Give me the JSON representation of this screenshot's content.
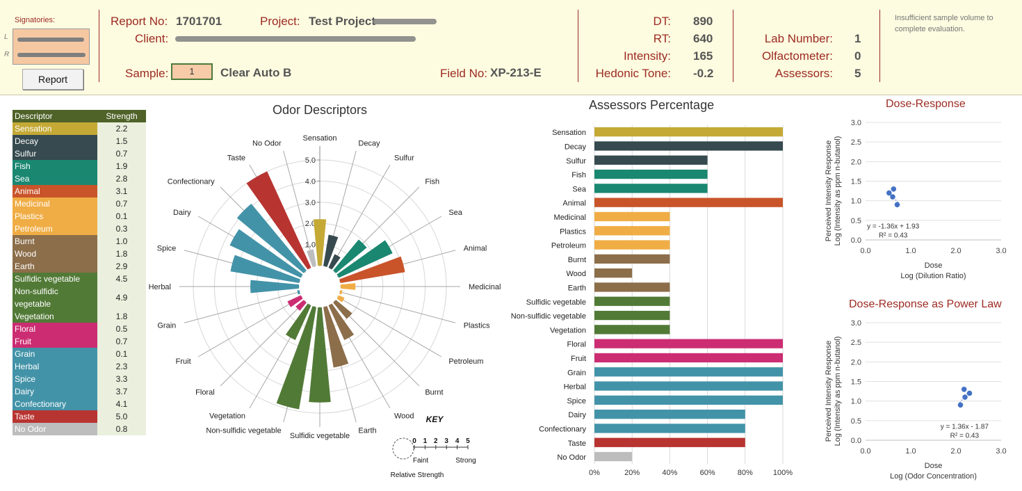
{
  "header": {
    "signatories_label": "Signatories:",
    "sig_l": "L",
    "sig_r": "R",
    "report_button": "Report",
    "report_no_label": "Report No:",
    "report_no": "1701701",
    "project_label": "Project:",
    "project": "Test Project",
    "client_label": "Client:",
    "sample_label": "Sample:",
    "sample_value": "1",
    "sample_name": "Clear Auto B",
    "field_no_label": "Field No:",
    "field_no": "XP-213-E",
    "dt_label": "DT:",
    "dt": "890",
    "rt_label": "RT:",
    "rt": "640",
    "intensity_label": "Intensity:",
    "intensity": "165",
    "hedonic_label": "Hedonic Tone:",
    "hedonic": "-0.2",
    "lab_number_label": "Lab Number:",
    "lab_number": "1",
    "olfactometer_label": "Olfactometer:",
    "olfactometer": "0",
    "assessors_label": "Assessors:",
    "assessors": "5",
    "note": "Insufficient sample volume to complete evaluation."
  },
  "descriptor_table": {
    "col_descriptor": "Descriptor",
    "col_strength": "Strength"
  },
  "descriptors": [
    {
      "name": "Sensation",
      "strength": "2.2",
      "color": "#c4a935"
    },
    {
      "name": "Decay",
      "strength": "1.5",
      "color": "#364a4f"
    },
    {
      "name": "Sulfur",
      "strength": "0.7",
      "color": "#364a4f"
    },
    {
      "name": "Fish",
      "strength": "1.9",
      "color": "#1a8771"
    },
    {
      "name": "Sea",
      "strength": "2.8",
      "color": "#1a8771"
    },
    {
      "name": "Animal",
      "strength": "3.1",
      "color": "#c9542a"
    },
    {
      "name": "Medicinal",
      "strength": "0.7",
      "color": "#f0ad45"
    },
    {
      "name": "Plastics",
      "strength": "0.1",
      "color": "#f0ad45"
    },
    {
      "name": "Petroleum",
      "strength": "0.3",
      "color": "#f0ad45"
    },
    {
      "name": "Burnt",
      "strength": "1.0",
      "color": "#8c6e4a"
    },
    {
      "name": "Wood",
      "strength": "1.8",
      "color": "#8c6e4a"
    },
    {
      "name": "Earth",
      "strength": "2.9",
      "color": "#8c6e4a"
    },
    {
      "name": "Sulfidic vegetable",
      "strength": "4.5",
      "color": "#527a37"
    },
    {
      "name": "Non-sulfidic vegetable",
      "strength": "4.9",
      "color": "#527a37"
    },
    {
      "name": "Vegetation",
      "strength": "1.8",
      "color": "#527a37"
    },
    {
      "name": "Floral",
      "strength": "0.5",
      "color": "#cc2d72"
    },
    {
      "name": "Fruit",
      "strength": "0.7",
      "color": "#cc2d72"
    },
    {
      "name": "Grain",
      "strength": "0.1",
      "color": "#4393a8"
    },
    {
      "name": "Herbal",
      "strength": "2.3",
      "color": "#4393a8"
    },
    {
      "name": "Spice",
      "strength": "3.3",
      "color": "#4393a8"
    },
    {
      "name": "Dairy",
      "strength": "3.7",
      "color": "#4393a8"
    },
    {
      "name": "Confectionary",
      "strength": "4.1",
      "color": "#4393a8"
    },
    {
      "name": "Taste",
      "strength": "5.0",
      "color": "#b83431"
    },
    {
      "name": "No Odor",
      "strength": "0.8",
      "color": "#bdbdbd"
    }
  ],
  "chart_data": [
    {
      "type": "polar-bar",
      "title": "Odor Descriptors",
      "rlim": [
        0,
        5
      ],
      "r_ticks": [
        "1.0",
        "2.0",
        "3.0",
        "4.0",
        "5.0"
      ],
      "categories": [
        "Sensation",
        "Decay",
        "Sulfur",
        "Fish",
        "Sea",
        "Animal",
        "Medicinal",
        "Plastics",
        "Petroleum",
        "Burnt",
        "Wood",
        "Earth",
        "Sulfidic vegetable",
        "Non-sulfidic vegetable",
        "Vegetation",
        "Floral",
        "Fruit",
        "Grain",
        "Herbal",
        "Spice",
        "Dairy",
        "Confectionary",
        "Taste",
        "No Odor"
      ],
      "values": [
        2.2,
        1.5,
        0.7,
        1.9,
        2.8,
        3.1,
        0.7,
        0.1,
        0.3,
        1.0,
        1.8,
        2.9,
        4.5,
        4.9,
        1.8,
        0.5,
        0.7,
        0.1,
        2.3,
        3.3,
        3.7,
        4.1,
        5.0,
        0.8
      ],
      "key": {
        "title": "KEY",
        "scale": [
          "0",
          "1",
          "2",
          "3",
          "4",
          "5"
        ],
        "faint": "Faint",
        "strong": "Strong",
        "caption": "Relative Strength"
      }
    },
    {
      "type": "bar",
      "orientation": "horizontal",
      "title": "Assessors Percentage",
      "categories": [
        "Sensation",
        "Decay",
        "Sulfur",
        "Fish",
        "Sea",
        "Animal",
        "Medicinal",
        "Plastics",
        "Petroleum",
        "Burnt",
        "Wood",
        "Earth",
        "Sulfidic vegetable",
        "Non-sulfidic vegetable",
        "Vegetation",
        "Floral",
        "Fruit",
        "Grain",
        "Herbal",
        "Spice",
        "Dairy",
        "Confectionary",
        "Taste",
        "No Odor"
      ],
      "values": [
        100,
        100,
        60,
        60,
        60,
        100,
        40,
        40,
        40,
        40,
        20,
        40,
        40,
        40,
        40,
        100,
        100,
        100,
        100,
        100,
        80,
        80,
        80,
        20
      ],
      "xlim": [
        0,
        100
      ],
      "x_ticks": [
        "0%",
        "20%",
        "40%",
        "60%",
        "80%",
        "100%"
      ]
    },
    {
      "type": "scatter",
      "title": "Dose-Response",
      "xlabel": "Dose",
      "xlabel2": "Log (Dilution Ratio)",
      "ylabel": "Perceived Intensity Response",
      "ylabel2": "Log (Intensity as ppm n-butanol)",
      "xlim": [
        0,
        3
      ],
      "ylim": [
        0,
        3
      ],
      "x_ticks": [
        "0.0",
        "1.0",
        "2.0",
        "3.0"
      ],
      "y_ticks": [
        "0.0",
        "0.5",
        "1.0",
        "1.5",
        "2.0",
        "2.5",
        "3.0"
      ],
      "points": [
        {
          "x": 0.52,
          "y": 1.2
        },
        {
          "x": 0.62,
          "y": 1.3
        },
        {
          "x": 0.6,
          "y": 1.1
        },
        {
          "x": 0.7,
          "y": 0.9
        }
      ],
      "trendline": {
        "slope": -1.36,
        "intercept": 1.93,
        "x_range": [
          0.5,
          0.72
        ]
      },
      "equation": "y = -1.36x + 1.93",
      "r2": "R² = 0.43"
    },
    {
      "type": "scatter",
      "title": "Dose-Response as Power Law",
      "xlabel": "Dose",
      "xlabel2": "Log (Odor Concentration)",
      "ylabel": "Perceived Intensity Response",
      "ylabel2": "Log (Intensity as ppm n-butanol)",
      "xlim": [
        0,
        3
      ],
      "ylim": [
        0,
        3
      ],
      "x_ticks": [
        "0.0",
        "1.0",
        "2.0",
        "3.0"
      ],
      "y_ticks": [
        "0.0",
        "0.5",
        "1.0",
        "1.5",
        "2.0",
        "2.5",
        "3.0"
      ],
      "points": [
        {
          "x": 2.1,
          "y": 0.9
        },
        {
          "x": 2.18,
          "y": 1.3
        },
        {
          "x": 2.2,
          "y": 1.1
        },
        {
          "x": 2.3,
          "y": 1.2
        }
      ],
      "trendline": {
        "slope": 1.36,
        "intercept": -1.87,
        "x_range": [
          2.08,
          2.3
        ]
      },
      "equation": "y = 1.36x - 1.87",
      "r2": "R² = 0.43"
    }
  ]
}
